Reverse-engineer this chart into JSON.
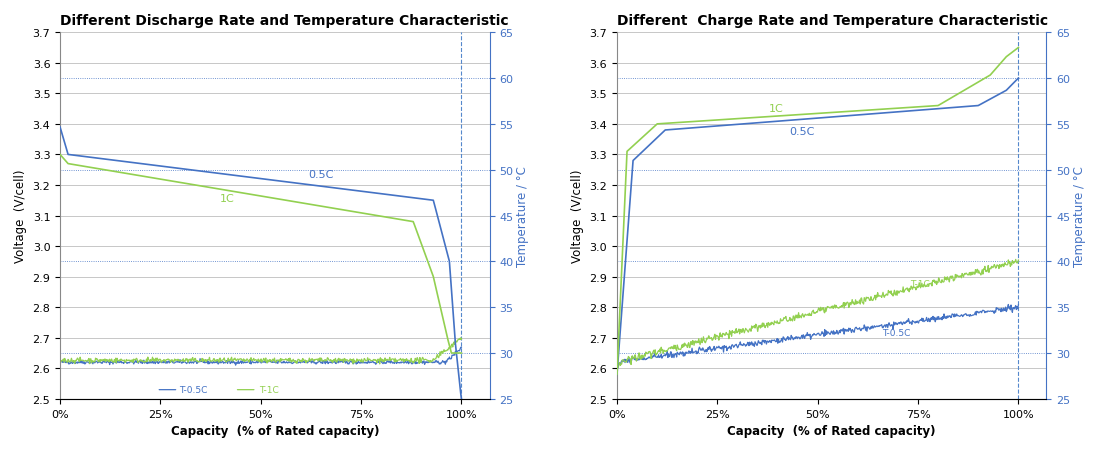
{
  "left_title": "Different Discharge Rate and Temperature Characteristic",
  "right_title": "Different  Charge Rate and Temperature Characteristic",
  "xlabel": "Capacity  (% of Rated capacity)",
  "left_ylabel": "Voltage  (V/cell)",
  "right_ylabel": "Voltage  (V/cell)",
  "temp_ylabel": "Temperature / °C",
  "voltage_ylim": [
    2.5,
    3.7
  ],
  "temp_ylim": [
    25,
    65
  ],
  "voltage_yticks": [
    2.5,
    2.6,
    2.7,
    2.8,
    2.9,
    3.0,
    3.1,
    3.2,
    3.3,
    3.4,
    3.5,
    3.6,
    3.7
  ],
  "temp_yticks": [
    25,
    30,
    35,
    40,
    45,
    50,
    55,
    60,
    65
  ],
  "temp_dotted_lines": [
    30,
    40,
    50,
    60
  ],
  "color_05C": "#4472c4",
  "color_1C": "#92d050",
  "title_fontsize": 10,
  "axis_label_fontsize": 8.5,
  "tick_fontsize": 8,
  "annotation_fontsize": 8
}
